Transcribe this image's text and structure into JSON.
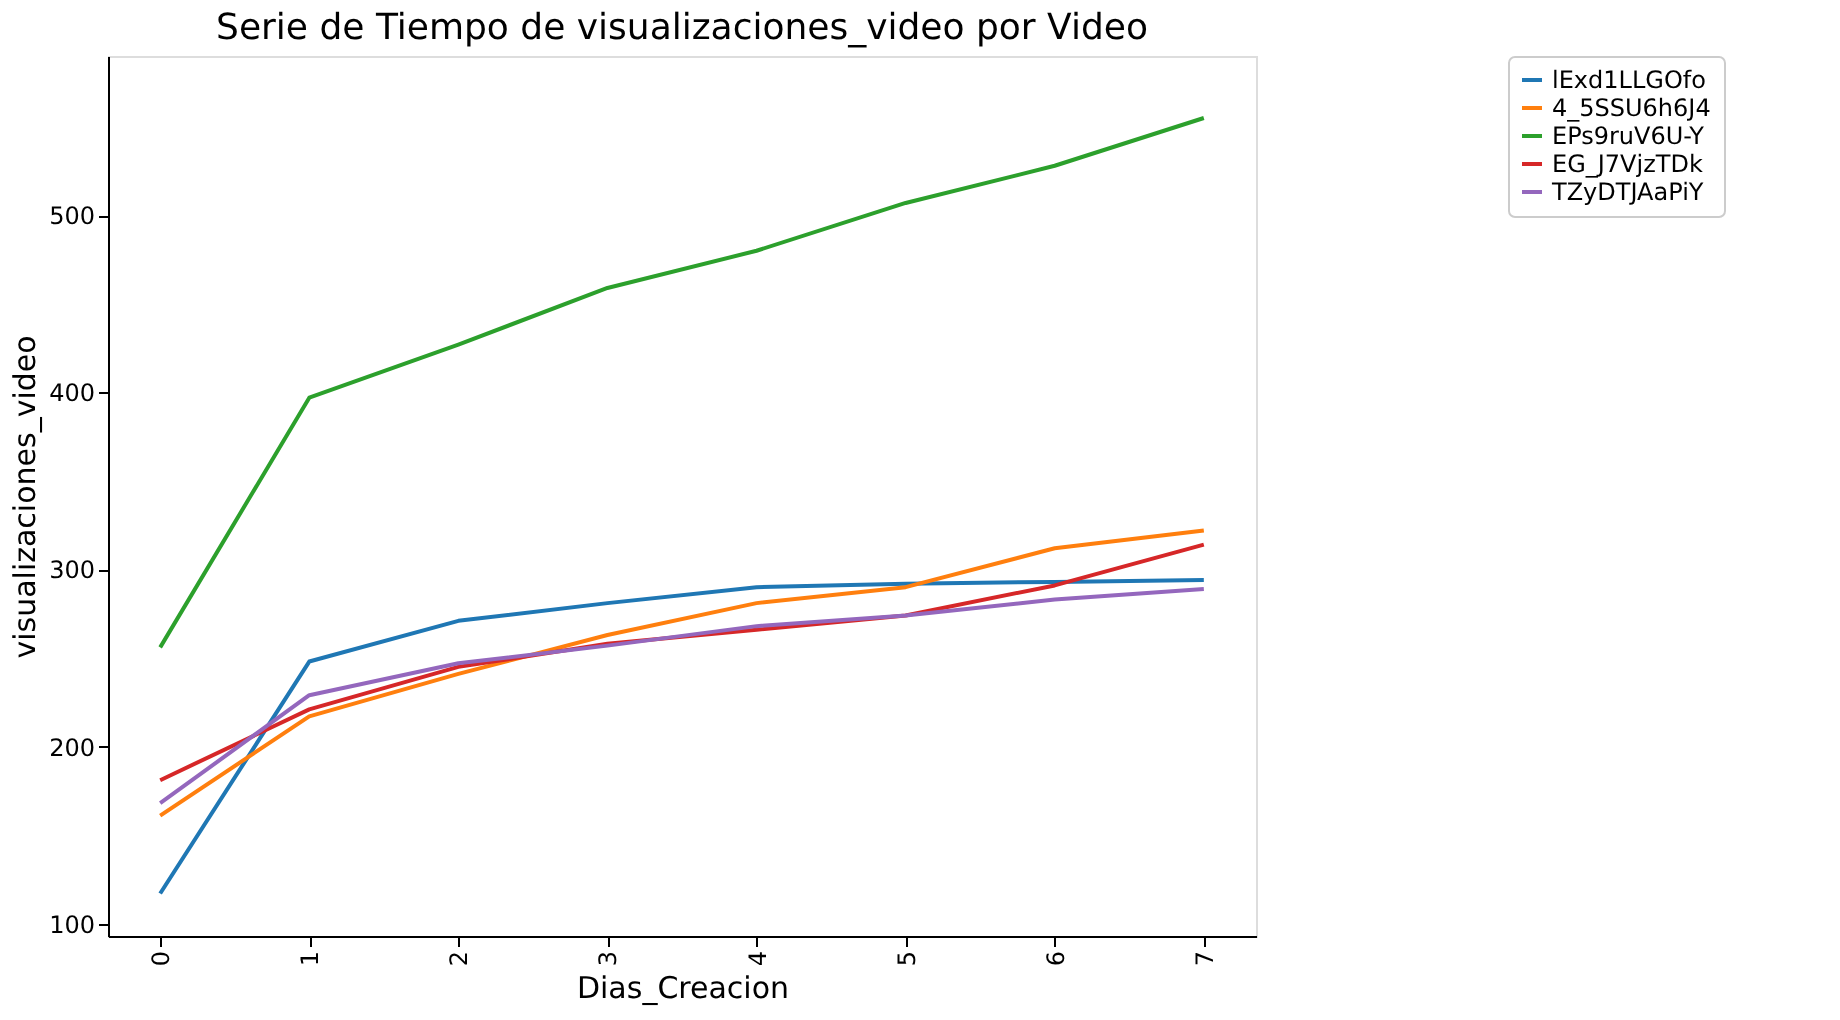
{
  "chart_data": {
    "type": "line",
    "title": "Serie de Tiempo de visualizaciones_video por Video",
    "xlabel": "Dias_Creacion",
    "ylabel": "visualizaciones_video",
    "x": [
      0,
      1,
      2,
      3,
      4,
      5,
      6,
      7
    ],
    "xlim": [
      -0.35,
      7.35
    ],
    "xticks": [
      0,
      1,
      2,
      3,
      4,
      5,
      6,
      7
    ],
    "ylim": [
      93,
      590
    ],
    "yticks": [
      100,
      200,
      300,
      400,
      500
    ],
    "grid": false,
    "legend": "top right",
    "line_style": "solid",
    "marker": "none",
    "series": [
      {
        "name": "lExd1LLGOfo",
        "color": "#1f77b4",
        "values": [
          117,
          248,
          271,
          281,
          290,
          292,
          293,
          294
        ]
      },
      {
        "name": "4_5SSU6h6J4",
        "color": "#ff7f0e",
        "values": [
          161,
          217,
          241,
          263,
          281,
          290,
          312,
          322
        ]
      },
      {
        "name": "EPs9ruV6U-Y",
        "color": "#2ca02c",
        "values": [
          256,
          397,
          427,
          459,
          480,
          507,
          528,
          555
        ]
      },
      {
        "name": "EG_J7VjzTDk",
        "color": "#d62728",
        "values": [
          181,
          221,
          245,
          258,
          266,
          274,
          291,
          314
        ]
      },
      {
        "name": "TZyDTJAaPiY",
        "color": "#9467bd",
        "values": [
          168,
          229,
          247,
          257,
          268,
          274,
          283,
          289
        ]
      }
    ]
  }
}
